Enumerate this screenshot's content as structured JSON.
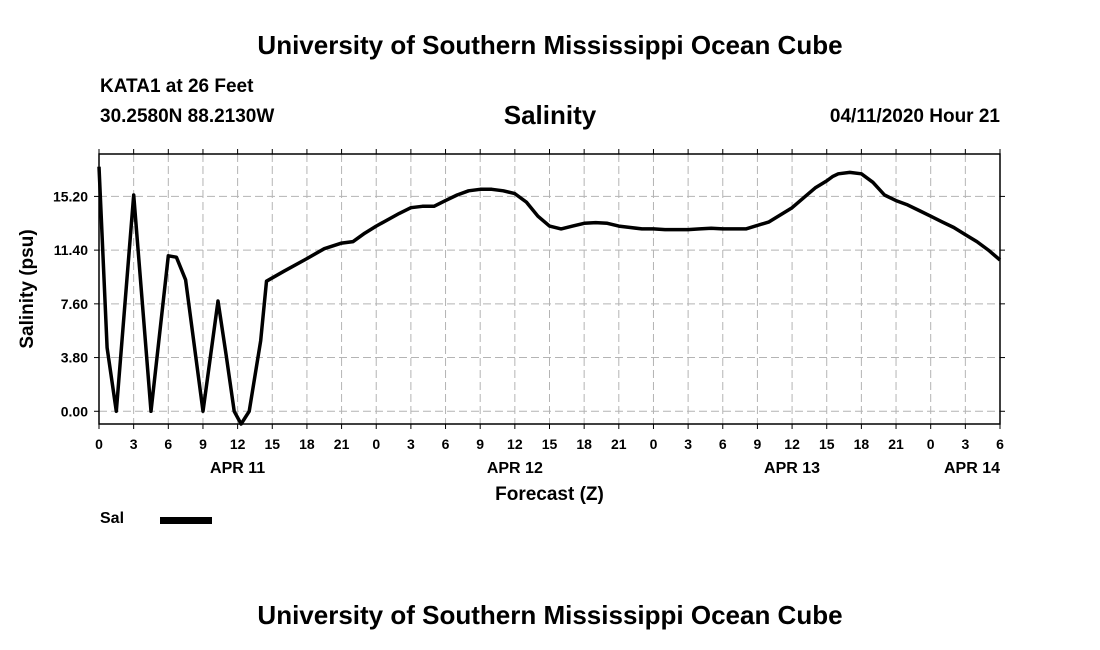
{
  "header": {
    "title": "University of Southern Mississippi Ocean Cube",
    "station": "KATA1 at 26 Feet",
    "coordinates": "30.2580N 88.2130W",
    "chart_title": "Salinity",
    "issued": "04/11/2020 Hour 21",
    "footer_title": "University of Southern Mississippi Ocean Cube"
  },
  "legend": {
    "label": "Sal"
  },
  "colors": {
    "line": "#000000",
    "grid": "#b4b4b4"
  },
  "chart_data": {
    "type": "line",
    "title": "Salinity",
    "xlabel": "Forecast (Z)",
    "ylabel": "Salinity (psu)",
    "ylim": [
      -0.9,
      18.2
    ],
    "yticks": [
      0,
      3.8,
      7.6,
      11.4,
      15.2
    ],
    "ytick_labels": [
      "0.00",
      "3.80",
      "7.60",
      "11.40",
      "15.20"
    ],
    "xlim": [
      0,
      78
    ],
    "xticks": [
      0,
      3,
      6,
      9,
      12,
      15,
      18,
      21,
      24,
      27,
      30,
      33,
      36,
      39,
      42,
      45,
      48,
      51,
      54,
      57,
      60,
      63,
      66,
      69,
      72,
      75,
      78
    ],
    "xtick_labels": [
      "0",
      "3",
      "6",
      "9",
      "12",
      "15",
      "18",
      "21",
      "0",
      "3",
      "6",
      "9",
      "12",
      "15",
      "18",
      "21",
      "0",
      "3",
      "6",
      "9",
      "12",
      "15",
      "18",
      "21",
      "0",
      "3",
      "6"
    ],
    "date_labels": [
      {
        "x": 12,
        "label": "APR 11"
      },
      {
        "x": 36,
        "label": "APR 12"
      },
      {
        "x": 60,
        "label": "APR 13"
      },
      {
        "x": 84,
        "label": "APR 14"
      }
    ],
    "grid": true,
    "series": [
      {
        "name": "Sal",
        "x": [
          0,
          0.7,
          1.5,
          3,
          4.5,
          6,
          6.7,
          7.5,
          9,
          10.3,
          11,
          11.7,
          12.3,
          13,
          14,
          14.5,
          16,
          18,
          19.5,
          21,
          22,
          23,
          24,
          26,
          27,
          28,
          29,
          30,
          31,
          32,
          33,
          34,
          35,
          36,
          37,
          38,
          39,
          40,
          41,
          42,
          43,
          44,
          45,
          46,
          47,
          48,
          49,
          50,
          51,
          52,
          53,
          54,
          56,
          58,
          60,
          61,
          62,
          63,
          63.5,
          64,
          65,
          66,
          67,
          68,
          69,
          70,
          71,
          72,
          73,
          74,
          75,
          76,
          77,
          78
        ],
        "y": [
          17.3,
          4.5,
          0,
          15.3,
          0,
          11,
          10.9,
          9.3,
          0,
          7.8,
          4,
          0,
          -0.9,
          0,
          5,
          9.2,
          9.9,
          10.8,
          11.5,
          11.9,
          12,
          12.6,
          13.1,
          14,
          14.4,
          14.5,
          14.5,
          14.9,
          15.3,
          15.6,
          15.7,
          15.7,
          15.6,
          15.4,
          14.8,
          13.8,
          13.1,
          12.9,
          13.1,
          13.3,
          13.35,
          13.3,
          13.1,
          13,
          12.9,
          12.9,
          12.85,
          12.85,
          12.85,
          12.9,
          12.95,
          12.9,
          12.9,
          13.4,
          14.4,
          15.1,
          15.8,
          16.3,
          16.6,
          16.8,
          16.9,
          16.8,
          16.2,
          15.3,
          14.9,
          14.6,
          14.2,
          13.8,
          13.4,
          13.0,
          12.5,
          12.0,
          11.4,
          10.7
        ]
      }
    ]
  }
}
